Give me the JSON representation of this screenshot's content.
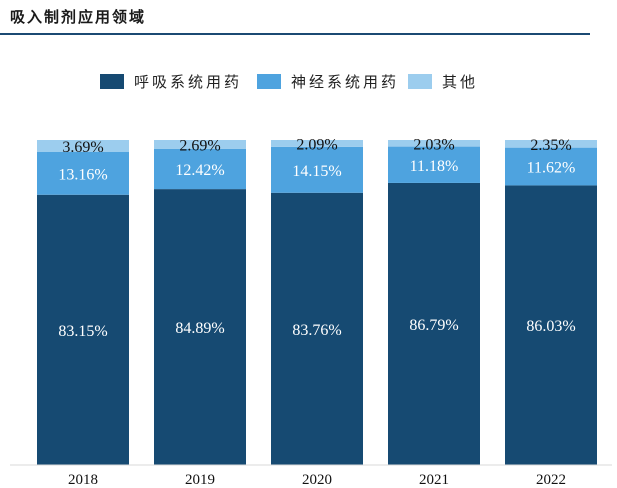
{
  "chart_data": {
    "type": "bar",
    "stacked": true,
    "title": "吸入制剂应用领域",
    "categories": [
      "2018",
      "2019",
      "2020",
      "2021",
      "2022"
    ],
    "series": [
      {
        "name": "呼吸系统用药",
        "color": "#164a72",
        "values": [
          83.15,
          84.89,
          83.76,
          86.79,
          86.03
        ],
        "labels": [
          "83.15%",
          "84.89%",
          "83.76%",
          "86.79%",
          "86.03%"
        ]
      },
      {
        "name": "神经系统用药",
        "color": "#4ea3df",
        "values": [
          13.16,
          12.42,
          14.15,
          11.18,
          11.62
        ],
        "labels": [
          "13.16%",
          "12.42%",
          "14.15%",
          "11.18%",
          "11.62%"
        ]
      },
      {
        "name": "其他",
        "color": "#9ccdee",
        "values": [
          3.69,
          2.69,
          2.09,
          2.03,
          2.35
        ],
        "labels": [
          "3.69%",
          "2.69%",
          "2.09%",
          "2.03%",
          "2.35%"
        ]
      }
    ],
    "ylim": [
      0,
      100
    ],
    "legend_position": "top",
    "grid": false
  }
}
